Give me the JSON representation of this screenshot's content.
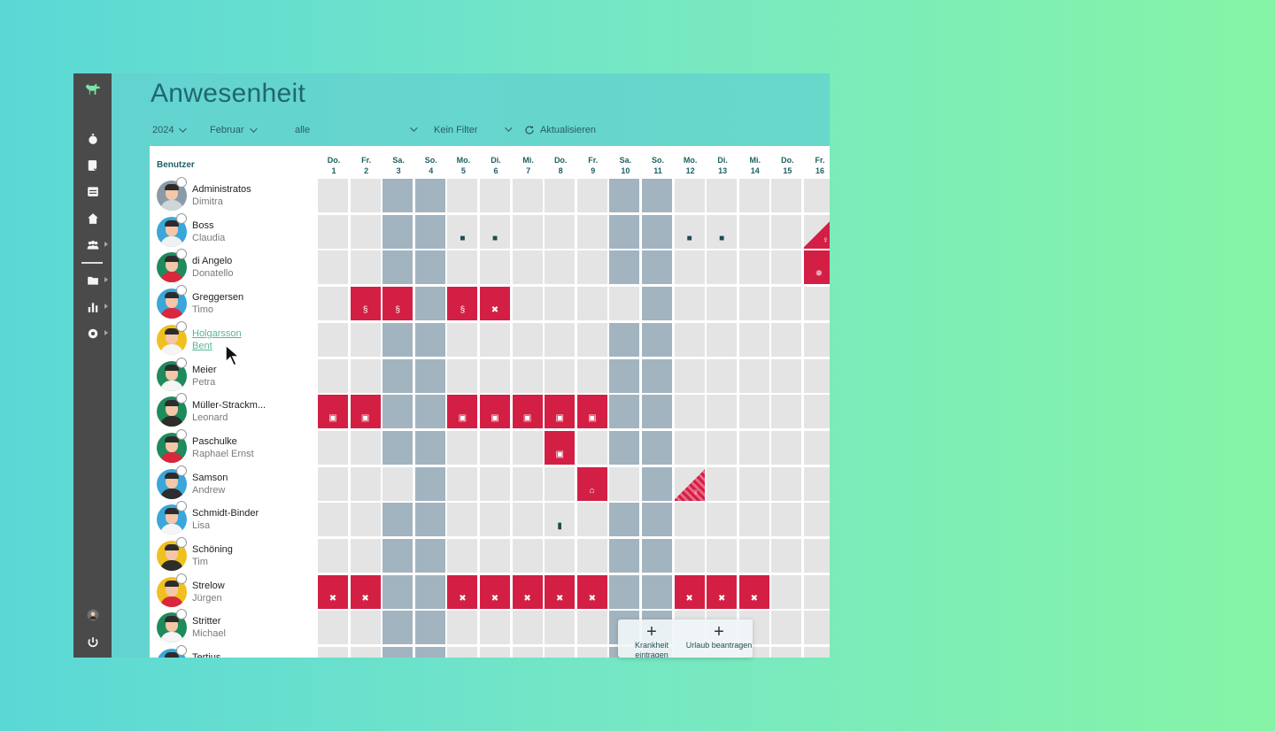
{
  "app": {
    "title": "Anwesenheit",
    "logo_icon": "dog-icon"
  },
  "sidebar": {
    "items": [
      {
        "name": "stopwatch-icon"
      },
      {
        "name": "checklist-icon"
      },
      {
        "name": "calendar-icon"
      },
      {
        "name": "home-icon"
      },
      {
        "name": "team-icon"
      },
      {
        "name": "folder-icon"
      },
      {
        "name": "chart-icon"
      },
      {
        "name": "gear-icon"
      }
    ],
    "bottom": [
      {
        "name": "user-avatar-icon"
      },
      {
        "name": "power-icon"
      }
    ]
  },
  "filters": {
    "year": "2024",
    "month": "Februar",
    "group": "alle",
    "filter": "Kein Filter",
    "refresh": "Aktualisieren"
  },
  "table": {
    "user_header": "Benutzer",
    "days": [
      {
        "wd": "Do.",
        "d": "1"
      },
      {
        "wd": "Fr.",
        "d": "2"
      },
      {
        "wd": "Sa.",
        "d": "3"
      },
      {
        "wd": "So.",
        "d": "4"
      },
      {
        "wd": "Mo.",
        "d": "5"
      },
      {
        "wd": "Di.",
        "d": "6"
      },
      {
        "wd": "Mi.",
        "d": "7"
      },
      {
        "wd": "Do.",
        "d": "8"
      },
      {
        "wd": "Fr.",
        "d": "9"
      },
      {
        "wd": "Sa.",
        "d": "10"
      },
      {
        "wd": "So.",
        "d": "11"
      },
      {
        "wd": "Mo.",
        "d": "12"
      },
      {
        "wd": "Di.",
        "d": "13"
      },
      {
        "wd": "Mi.",
        "d": "14"
      },
      {
        "wd": "Do.",
        "d": "15"
      },
      {
        "wd": "Fr.",
        "d": "16"
      }
    ],
    "users": [
      {
        "last": "Administratos",
        "first": "Dimitra",
        "color": "#8a9aa6",
        "shirt": "#cfd6da"
      },
      {
        "last": "Boss",
        "first": "Claudia",
        "color": "#3aa6d9",
        "shirt": "#f1f1f1"
      },
      {
        "last": "di Angelo",
        "first": "Donatello",
        "color": "#1f8a5b",
        "shirt": "#d9273d"
      },
      {
        "last": "Greggersen",
        "first": "Timo",
        "color": "#3aa6d9",
        "shirt": "#d9273d"
      },
      {
        "last": "Holgarsson",
        "first": "Bent",
        "color": "#f0c020",
        "shirt": "#f5f5f5"
      },
      {
        "last": "Meier",
        "first": "Petra",
        "color": "#1f8a5b",
        "shirt": "#f5f5f5"
      },
      {
        "last": "Müller-Strackm...",
        "first": "Leonard",
        "color": "#1f8a5b",
        "shirt": "#2d2d2d"
      },
      {
        "last": "Paschulke",
        "first": "Raphael Ernst",
        "color": "#1f8a5b",
        "shirt": "#d9273d"
      },
      {
        "last": "Samson",
        "first": "Andrew",
        "color": "#3aa6d9",
        "shirt": "#2d2d2d"
      },
      {
        "last": "Schmidt-Binder",
        "first": "Lisa",
        "color": "#3aa6d9",
        "shirt": "#f5f5f5"
      },
      {
        "last": "Schöning",
        "first": "Tim",
        "color": "#f0c020",
        "shirt": "#2d2d2d"
      },
      {
        "last": "Strelow",
        "first": "Jürgen",
        "color": "#f0c020",
        "shirt": "#d9273d"
      },
      {
        "last": "Stritter",
        "first": "Michael",
        "color": "#1f8a5b",
        "shirt": "#f5f5f5"
      },
      {
        "last": "Tertius",
        "first": "",
        "color": "#3aa6d9",
        "shirt": "#f5f5f5"
      }
    ],
    "weekend_days": [
      3,
      4,
      10,
      11
    ],
    "cells": [
      {
        "row": 1,
        "day": 5,
        "type": "icon",
        "icon": "briefcase-icon"
      },
      {
        "row": 1,
        "day": 6,
        "type": "icon",
        "icon": "briefcase-icon"
      },
      {
        "row": 1,
        "day": 12,
        "type": "icon",
        "icon": "briefcase-icon"
      },
      {
        "row": 1,
        "day": 13,
        "type": "icon",
        "icon": "briefcase-icon"
      },
      {
        "row": 1,
        "day": 16,
        "type": "tri",
        "icon": "baby-icon"
      },
      {
        "row": 2,
        "day": 16,
        "type": "red",
        "icon": "sun-icon"
      },
      {
        "row": 3,
        "day": 2,
        "type": "red",
        "icon": "paragraph-icon"
      },
      {
        "row": 3,
        "day": 3,
        "type": "red",
        "icon": "paragraph-icon"
      },
      {
        "row": 3,
        "day": 5,
        "type": "red",
        "icon": "paragraph-icon"
      },
      {
        "row": 3,
        "day": 6,
        "type": "red",
        "icon": "cross-icon"
      },
      {
        "row": 6,
        "day": 1,
        "type": "red",
        "icon": "school-icon"
      },
      {
        "row": 6,
        "day": 2,
        "type": "red",
        "icon": "school-icon"
      },
      {
        "row": 6,
        "day": 5,
        "type": "red",
        "icon": "school-icon"
      },
      {
        "row": 6,
        "day": 6,
        "type": "red",
        "icon": "school-icon"
      },
      {
        "row": 6,
        "day": 7,
        "type": "red",
        "icon": "school-icon"
      },
      {
        "row": 6,
        "day": 8,
        "type": "red",
        "icon": "school-icon"
      },
      {
        "row": 6,
        "day": 9,
        "type": "red",
        "icon": "school-icon"
      },
      {
        "row": 7,
        "day": 8,
        "type": "red",
        "icon": "school-icon"
      },
      {
        "row": 8,
        "day": 9,
        "type": "red",
        "icon": "home-icon"
      },
      {
        "row": 8,
        "day": 12,
        "type": "tri-striped",
        "icon": "baby-icon"
      },
      {
        "row": 9,
        "day": 8,
        "type": "icon",
        "icon": "truck-icon"
      },
      {
        "row": 11,
        "day": 1,
        "type": "red",
        "icon": "cross-icon"
      },
      {
        "row": 11,
        "day": 2,
        "type": "red",
        "icon": "cross-icon"
      },
      {
        "row": 11,
        "day": 5,
        "type": "red",
        "icon": "cross-icon"
      },
      {
        "row": 11,
        "day": 6,
        "type": "red",
        "icon": "cross-icon"
      },
      {
        "row": 11,
        "day": 7,
        "type": "red",
        "icon": "cross-icon"
      },
      {
        "row": 11,
        "day": 8,
        "type": "red",
        "icon": "cross-icon"
      },
      {
        "row": 11,
        "day": 9,
        "type": "red",
        "icon": "cross-icon"
      },
      {
        "row": 11,
        "day": 12,
        "type": "red",
        "icon": "cross-icon"
      },
      {
        "row": 11,
        "day": 13,
        "type": "red",
        "icon": "cross-icon"
      },
      {
        "row": 11,
        "day": 14,
        "type": "red",
        "icon": "cross-icon"
      }
    ],
    "row_weekend_overrides": [
      {
        "row": 3,
        "day": 3,
        "weekend": false
      },
      {
        "row": 3,
        "day": 10,
        "weekend": false
      },
      {
        "row": 8,
        "day": 3,
        "weekend": false
      },
      {
        "row": 8,
        "day": 10,
        "weekend": false
      }
    ],
    "hover_row": 4
  },
  "popover": {
    "sick_label": "Krankheit eintragen",
    "vacation_label": "Urlaub beantragen"
  },
  "colors": {
    "absence": "#d41f45",
    "weekend": "#a2b4c0",
    "empty": "#e4e4e4",
    "accent": "#1f6770"
  }
}
